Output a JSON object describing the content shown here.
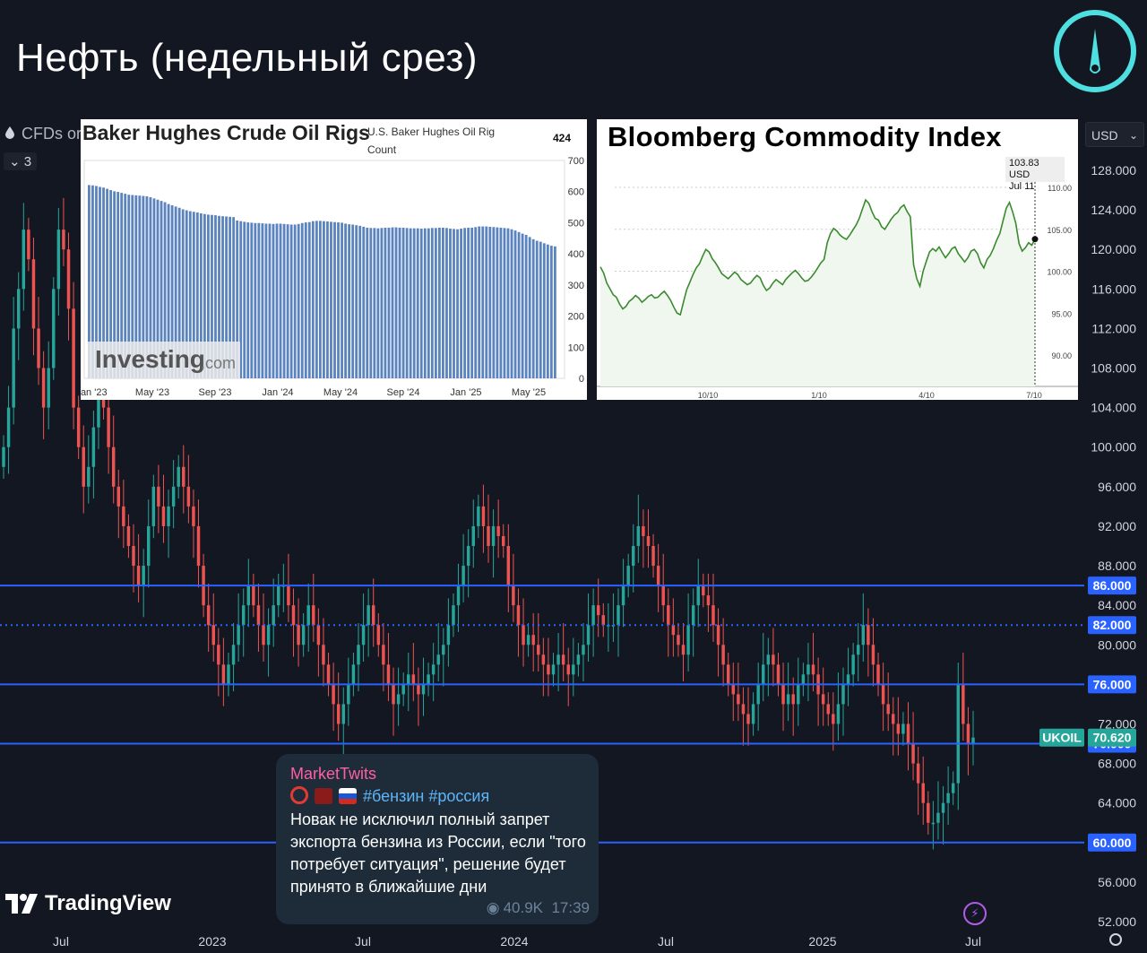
{
  "title": "Нефть (недельный срез)",
  "toolbar": {
    "symbol_fragment": "CFDs or",
    "collapse_label": "3",
    "currency": "USD"
  },
  "watermark": {
    "brand": "TradingView"
  },
  "colors": {
    "background": "#131722",
    "up": "#26a69a",
    "down": "#ef5350",
    "level_line": "#2962ff",
    "last_price": "#26a69a",
    "logo": "#4ee0e0"
  },
  "chart_data": [
    {
      "id": "main",
      "type": "candlestick",
      "symbol": "UKOIL",
      "last_price": "70.620",
      "ylim": [
        52,
        130
      ],
      "y_ticks": [
        "128.000",
        "124.000",
        "120.000",
        "116.000",
        "112.000",
        "108.000",
        "104.000",
        "100.000",
        "96.000",
        "92.000",
        "88.000",
        "84.000",
        "80.000",
        "76.000",
        "72.000",
        "68.000",
        "64.000",
        "60.000",
        "56.000",
        "52.000"
      ],
      "x_ticks": [
        "Jul",
        "2023",
        "Jul",
        "2024",
        "Jul",
        "2025",
        "Jul"
      ],
      "levels": [
        {
          "value": 86,
          "label": "86.000",
          "style": "solid"
        },
        {
          "value": 82,
          "label": "82.000",
          "style": "dotted"
        },
        {
          "value": 76,
          "label": "76.000",
          "style": "solid"
        },
        {
          "value": 70,
          "label": "70.000",
          "style": "solid"
        },
        {
          "value": 60,
          "label": "60.000",
          "style": "solid"
        }
      ],
      "close": [
        100,
        104,
        112,
        116,
        122,
        119,
        112,
        108,
        104,
        108,
        116,
        122,
        120,
        114,
        104,
        100,
        96,
        98,
        102,
        106,
        104,
        100,
        96,
        94,
        92,
        90,
        88,
        86,
        88,
        92,
        96,
        94,
        92,
        94,
        96,
        98,
        96,
        94,
        92,
        88,
        84,
        82,
        80,
        78,
        76,
        78,
        80,
        82,
        84,
        86,
        84,
        82,
        80,
        82,
        84,
        86,
        86,
        84,
        82,
        80,
        82,
        84,
        82,
        80,
        78,
        76,
        74,
        72,
        74,
        76,
        78,
        80,
        82,
        84,
        82,
        80,
        78,
        76,
        74,
        75,
        76,
        77,
        76,
        75,
        76,
        77,
        78,
        79,
        80,
        82,
        84,
        86,
        88,
        90,
        92,
        94,
        92,
        90,
        92,
        91,
        90,
        86,
        84,
        82,
        80,
        81,
        80,
        79,
        78,
        77,
        78,
        79,
        78,
        77,
        78,
        79,
        80,
        82,
        84,
        83,
        82,
        82,
        82,
        84,
        86,
        88,
        90,
        92,
        91,
        90,
        88,
        86,
        84,
        82,
        81,
        80,
        79,
        82,
        84,
        86,
        85,
        84,
        82,
        80,
        78,
        76,
        75,
        74,
        73,
        72,
        74,
        76,
        78,
        79,
        78,
        76,
        74,
        75,
        74,
        76,
        77,
        78,
        77,
        75,
        74,
        73,
        72,
        74,
        76,
        77,
        79,
        80,
        82,
        80,
        78,
        76,
        74,
        73,
        72,
        71,
        72,
        70,
        68,
        66,
        64,
        62,
        62,
        63,
        64,
        65,
        66,
        76,
        72,
        70,
        70.62
      ]
    },
    {
      "id": "baker-hughes",
      "type": "bar",
      "title": "Baker Hughes Crude Oil Rigs",
      "subtitle": "U.S. Baker Hughes Oil Rig Count",
      "last_value": "424",
      "ylim": [
        0,
        700
      ],
      "y_ticks": [
        "700",
        "600",
        "500",
        "400",
        "300",
        "200",
        "100",
        "0"
      ],
      "x_ticks": [
        "Jan '23",
        "May '23",
        "Sep '23",
        "Jan '24",
        "May '24",
        "Sep '24",
        "Jan '25",
        "May '25"
      ],
      "values": [
        621,
        620,
        618,
        615,
        613,
        609,
        605,
        601,
        599,
        596,
        593,
        590,
        589,
        588,
        587,
        586,
        585,
        582,
        578,
        574,
        570,
        566,
        560,
        556,
        552,
        548,
        543,
        540,
        537,
        535,
        533,
        530,
        528,
        526,
        525,
        524,
        522,
        521,
        520,
        519,
        518,
        507,
        505,
        503,
        501,
        500,
        499,
        499,
        498,
        497,
        497,
        496,
        497,
        497,
        496,
        495,
        494,
        494,
        496,
        499,
        501,
        502,
        505,
        506,
        506,
        505,
        504,
        503,
        502,
        501,
        500,
        497,
        495,
        494,
        492,
        490,
        487,
        484,
        483,
        483,
        482,
        483,
        484,
        484,
        485,
        485,
        484,
        484,
        483,
        482,
        482,
        482,
        481,
        482,
        482,
        483,
        483,
        484,
        484,
        483,
        481,
        480,
        479,
        481,
        483,
        484,
        484,
        486,
        488,
        488,
        488,
        487,
        486,
        485,
        484,
        483,
        482,
        479,
        475,
        470,
        465,
        461,
        454,
        447,
        442,
        439,
        434,
        430,
        426,
        424
      ]
    },
    {
      "id": "bloomberg",
      "type": "line",
      "title": "Bloomberg Commodity Index",
      "tooltip_value": "103.83 USD",
      "tooltip_date": "Jul 11",
      "ylim": [
        88,
        112
      ],
      "y_ticks": [
        "110.00",
        "105.00",
        "100.00",
        "95.00",
        "90.00"
      ],
      "x_ticks": [
        "10/10",
        "1/10",
        "4/10",
        "7/10"
      ],
      "values": [
        100.5,
        99.8,
        98.6,
        97.9,
        97.2,
        96.9,
        96.1,
        95.5,
        95.8,
        96.4,
        96.7,
        97.1,
        96.8,
        96.3,
        96.6,
        97.0,
        97.2,
        96.8,
        96.9,
        97.3,
        97.6,
        97.1,
        96.5,
        95.7,
        95.0,
        94.8,
        96.3,
        97.8,
        98.7,
        99.6,
        100.4,
        100.9,
        101.8,
        102.6,
        102.3,
        101.5,
        101.0,
        100.4,
        99.7,
        99.4,
        99.1,
        99.5,
        99.9,
        99.6,
        99.0,
        98.7,
        98.4,
        98.6,
        99.1,
        99.5,
        99.2,
        98.3,
        97.7,
        98.0,
        98.6,
        99.0,
        98.7,
        98.4,
        99.0,
        99.4,
        99.8,
        100.1,
        99.7,
        99.2,
        98.8,
        98.9,
        99.3,
        99.8,
        100.4,
        101.0,
        101.4,
        103.4,
        104.5,
        105.1,
        104.8,
        104.3,
        104.0,
        103.8,
        104.3,
        104.9,
        105.5,
        106.3,
        107.4,
        108.5,
        108.1,
        107.1,
        106.3,
        106.1,
        105.3,
        105.0,
        105.6,
        106.2,
        106.7,
        107.0,
        107.6,
        107.9,
        107.1,
        106.5,
        100.8,
        99.1,
        98.2,
        100.0,
        101.2,
        102.3,
        102.7,
        102.4,
        102.9,
        102.2,
        101.6,
        102.1,
        102.7,
        102.9,
        102.1,
        101.6,
        101.1,
        101.6,
        102.4,
        102.6,
        102.1,
        101.0,
        100.4,
        101.4,
        101.9,
        102.7,
        103.7,
        104.5,
        106.0,
        107.5,
        108.2,
        107.1,
        105.7,
        103.3,
        102.4,
        102.8,
        103.4,
        103.1,
        103.83
      ]
    }
  ],
  "message": {
    "author": "MarketTwits",
    "tags": "#бензин #россия",
    "body": " Новак не исключил полный запрет экспорта бензина из России, если \"того потребует ситуация\", решение будет принято в ближайшие дни",
    "views": "40.9K",
    "time": "17:39"
  }
}
